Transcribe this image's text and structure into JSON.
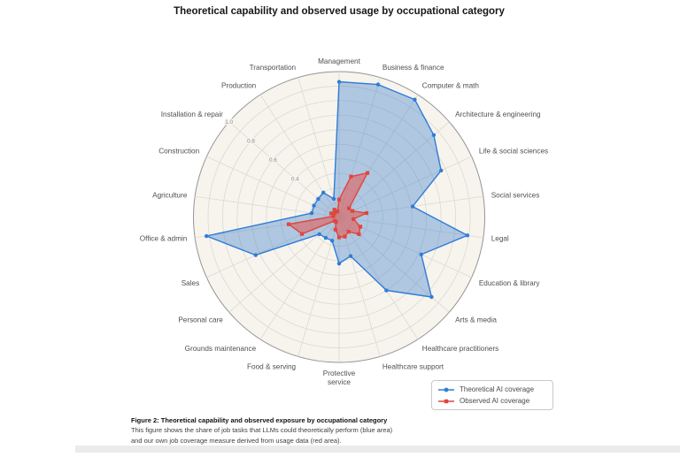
{
  "title": "Theoretical capability and observed usage by occupational category",
  "chart_data": {
    "type": "radar",
    "categories": [
      "Management",
      "Business & finance",
      "Computer & math",
      "Architecture & engineering",
      "Life & social sciences",
      "Social services",
      "Legal",
      "Education & library",
      "Arts & media",
      "Healthcare practitioners",
      "Healthcare support",
      "Protective service",
      "Food & serving",
      "Grounds maintenance",
      "Personal care",
      "Sales",
      "Office & admin",
      "Agriculture",
      "Construction",
      "Installation & repair",
      "Production",
      "Transportation"
    ],
    "series": [
      {
        "name": "Theoretical AI coverage",
        "marker": "circle",
        "color": "#2f7cd6",
        "fill": "rgba(77,135,206,0.42)",
        "values": [
          0.93,
          0.95,
          0.96,
          0.86,
          0.77,
          0.51,
          0.89,
          0.62,
          0.84,
          0.6,
          0.28,
          0.32,
          0.17,
          0.17,
          0.18,
          0.63,
          0.92,
          0.19,
          0.19,
          0.19,
          0.2,
          0.13
        ]
      },
      {
        "name": "Observed AI coverage",
        "marker": "square",
        "color": "#e0453e",
        "fill": "rgba(229,85,77,0.55)",
        "values": [
          0.12,
          0.29,
          0.36,
          0.09,
          0.1,
          0.19,
          0.1,
          0.16,
          0.18,
          0.12,
          0.14,
          0.14,
          0.09,
          0.04,
          0.04,
          0.28,
          0.35,
          0.04,
          0.06,
          0.04,
          0.06,
          0.04
        ]
      }
    ],
    "radial_range": [
      0,
      1
    ],
    "grid_step": 0.1,
    "radial_tick_labels": [
      "0.4",
      "0.6",
      "0.8",
      "1.0"
    ],
    "radial_tick_values": [
      0.4,
      0.6,
      0.8,
      1.0
    ],
    "grid_on": true,
    "legend_position": "bottom-right",
    "plot_bg": "#f7f4ee",
    "grid_color": "#dcd9d1",
    "outer_ring_color": "#949494",
    "category_label_color": "#4f4f4f",
    "tick_label_color": "#8a8a8a"
  },
  "caption": {
    "heading": "Figure 2: Theoretical capability and observed exposure by occupational category",
    "body": "This figure shows the share of job tasks that LLMs could theoretically perform (blue area) and our own job coverage measure derived from usage data (red area)."
  }
}
